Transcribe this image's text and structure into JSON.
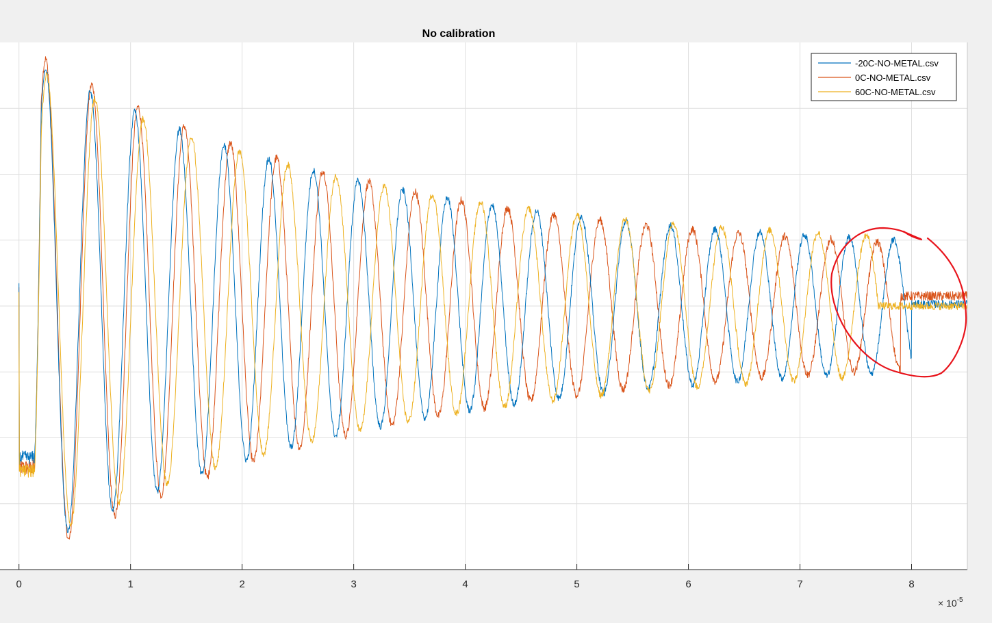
{
  "chart_data": {
    "type": "line",
    "title": "No calibration",
    "xlabel": "",
    "ylabel": "",
    "x_exponent_label": "× 10",
    "x_exponent_power": "-5",
    "xlim": [
      -0.17,
      8.5
    ],
    "ylim": [
      -4,
      4
    ],
    "x_ticks": [
      "0",
      "1",
      "2",
      "3",
      "4",
      "5",
      "6",
      "7",
      "8"
    ],
    "grid": true,
    "legend_position": "top-right",
    "annotation": "red hand-drawn circle around the tail of the signals (x ≈ 7.3–8.5)",
    "colors": {
      "series": [
        "#0072BD",
        "#D95319",
        "#EDB120"
      ],
      "annotation": "#e8141c",
      "grid": "#dfdfdf",
      "axis": "#262626"
    },
    "series": [
      {
        "name": "-20C-NO-METAL.csv",
        "start": 0.0,
        "onset": 0.14,
        "initial_level": -2.3,
        "amplitude": 3.7,
        "decay": 0.33,
        "period": 0.4,
        "phase_peak": 0.24,
        "floor_amplitude": 0.78,
        "end": 8.0,
        "end_level": 0.03,
        "noise": 0.05
      },
      {
        "name": "0C-NO-METAL.csv",
        "start": 0.0,
        "onset": 0.14,
        "initial_level": -2.45,
        "amplitude": 3.85,
        "decay": 0.33,
        "period": 0.414,
        "phase_peak": 0.24,
        "floor_amplitude": 0.72,
        "end": 7.9,
        "end_level": 0.15,
        "noise": 0.06
      },
      {
        "name": "60C-NO-METAL.csv",
        "start": 0.0,
        "onset": 0.14,
        "initial_level": -2.5,
        "amplitude": 3.6,
        "decay": 0.33,
        "period": 0.432,
        "phase_peak": 0.25,
        "floor_amplitude": 0.84,
        "end": 7.7,
        "end_level": 0.0,
        "noise": 0.05
      }
    ]
  }
}
